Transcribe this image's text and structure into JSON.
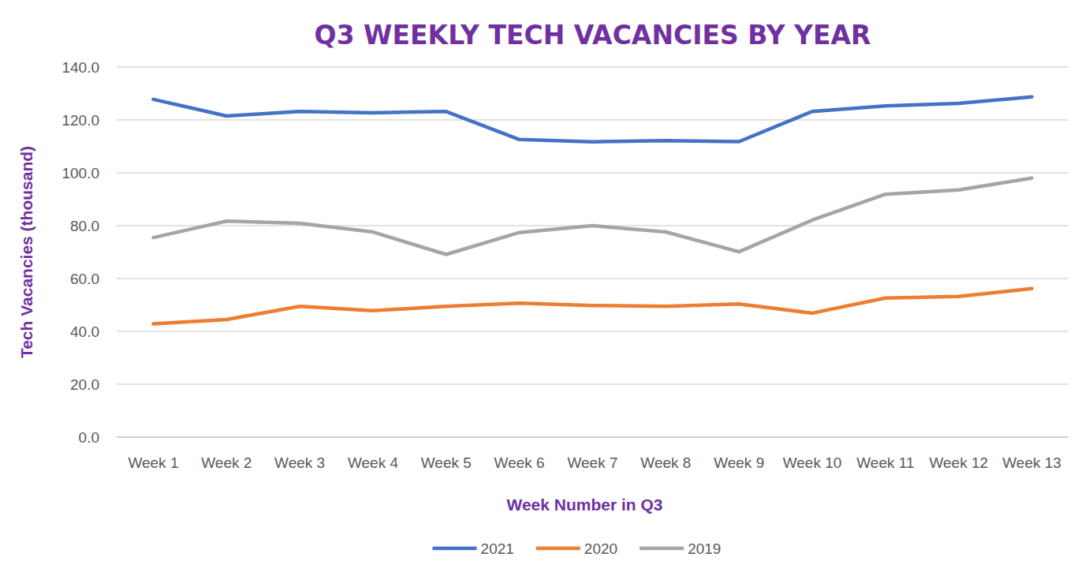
{
  "chart_data": {
    "type": "line",
    "title": "Q3 WEEKLY TECH VACANCIES BY YEAR",
    "x_label": "Week Number in Q3",
    "y_label": "Tech Vacancies (thousand)",
    "categories": [
      "Week 1",
      "Week 2",
      "Week 3",
      "Week 4",
      "Week 5",
      "Week 6",
      "Week 7",
      "Week 8",
      "Week 9",
      "Week 10",
      "Week 11",
      "Week 12",
      "Week 13"
    ],
    "series": [
      {
        "name": "2021",
        "color": "#4472c4",
        "values": [
          127.8,
          121.5,
          123.2,
          122.7,
          123.2,
          112.6,
          111.7,
          112.2,
          111.8,
          123.2,
          125.3,
          126.3,
          128.7
        ]
      },
      {
        "name": "2020",
        "color": "#ed7d31",
        "values": [
          42.8,
          44.5,
          49.5,
          47.8,
          49.5,
          50.7,
          49.8,
          49.5,
          50.4,
          46.9,
          52.6,
          53.2,
          56.2
        ]
      },
      {
        "name": "2019",
        "color": "#a5a5a5",
        "values": [
          75.5,
          81.7,
          80.9,
          77.6,
          69.1,
          77.4,
          80.0,
          77.6,
          70.1,
          82.1,
          91.9,
          93.5,
          98.0
        ]
      }
    ],
    "ylim": [
      0,
      140
    ],
    "yticks": [
      {
        "value": 0,
        "label": "0.0"
      },
      {
        "value": 20,
        "label": "20.0"
      },
      {
        "value": 40,
        "label": "40.0"
      },
      {
        "value": 60,
        "label": "60.0"
      },
      {
        "value": 80,
        "label": "80.0"
      },
      {
        "value": 100,
        "label": "100.0"
      },
      {
        "value": 120,
        "label": "120.0"
      },
      {
        "value": 140,
        "label": "140.0"
      }
    ],
    "grid": true,
    "legend": "bottom"
  }
}
